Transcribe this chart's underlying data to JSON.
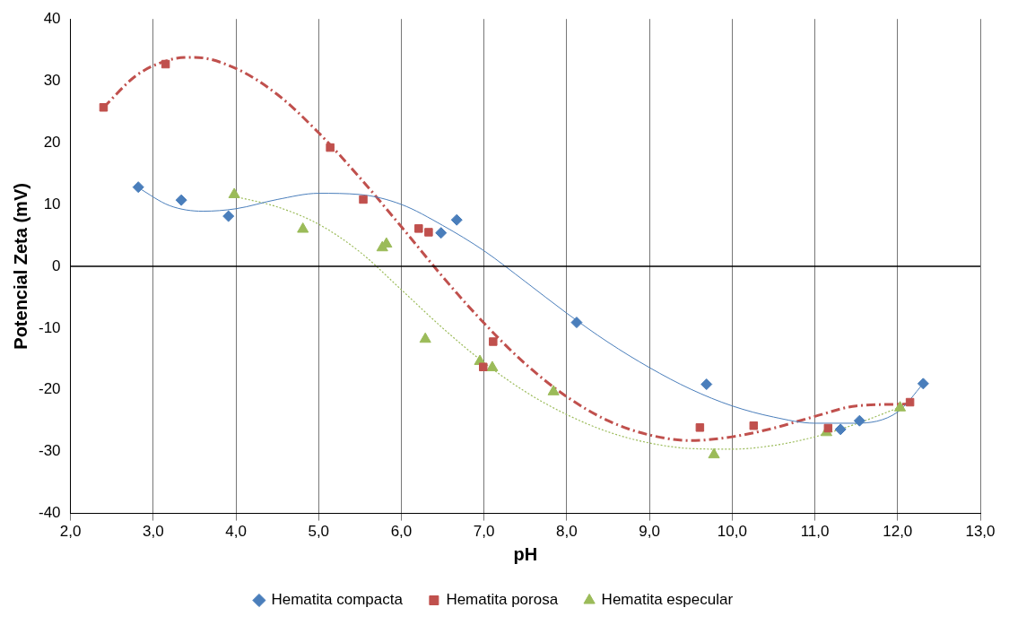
{
  "chart_data": {
    "type": "scatter",
    "xlabel": "pH",
    "ylabel": "Potencial Zeta (mV)",
    "xlim": [
      2,
      13
    ],
    "xticks": [
      {
        "value": 2,
        "label": "2,0"
      },
      {
        "value": 3,
        "label": "3,0"
      },
      {
        "value": 4,
        "label": "4,0"
      },
      {
        "value": 5,
        "label": "5,0"
      },
      {
        "value": 6,
        "label": "6,0"
      },
      {
        "value": 7,
        "label": "7,0"
      },
      {
        "value": 8,
        "label": "8,0"
      },
      {
        "value": 9,
        "label": "9,0"
      },
      {
        "value": 10,
        "label": "10,0"
      },
      {
        "value": 11,
        "label": "11,0"
      },
      {
        "value": 12,
        "label": "12,0"
      },
      {
        "value": 13,
        "label": "13,0"
      }
    ],
    "ylim": [
      -40,
      40
    ],
    "yticks": [
      -40,
      -30,
      -20,
      -10,
      0,
      10,
      20,
      30,
      40
    ],
    "grid": "x",
    "legend": "bottom",
    "ref_lines": [
      {
        "axis": "y",
        "value": 0,
        "color": "#000000"
      }
    ],
    "series": [
      {
        "name": "Hematita compacta",
        "marker": "diamond",
        "color": "#4a7ebb",
        "x": [
          2.82,
          3.34,
          3.91,
          6.48,
          6.67,
          8.12,
          9.69,
          11.31,
          11.54,
          12.31
        ],
        "values": [
          12.8,
          10.7,
          8.1,
          5.4,
          7.5,
          -9.1,
          -19.1,
          -26.4,
          -25.0,
          -19.0
        ]
      },
      {
        "name": "Hematita porosa",
        "marker": "square",
        "color": "#c0504d",
        "x": [
          2.4,
          3.15,
          5.14,
          5.54,
          6.21,
          6.33,
          6.99,
          7.11,
          9.61,
          10.26,
          11.16,
          12.15
        ],
        "values": [
          25.7,
          32.7,
          19.2,
          10.8,
          6.1,
          5.5,
          -16.3,
          -12.2,
          -26.1,
          -25.8,
          -26.2,
          -22.0
        ]
      },
      {
        "name": "Hematita especular",
        "marker": "triangle",
        "color": "#9bbb59",
        "x": [
          3.98,
          4.81,
          5.77,
          5.82,
          6.29,
          6.95,
          7.1,
          7.84,
          9.78,
          11.14,
          12.03
        ],
        "values": [
          11.6,
          6.0,
          3.0,
          3.6,
          -11.8,
          -15.4,
          -16.4,
          -20.3,
          -30.5,
          -26.9,
          -22.9
        ]
      },
      {
        "type": "line",
        "line_style": "solid",
        "color": "#4a7ebb",
        "x": [
          2.82,
          3.2,
          3.6,
          4.0,
          4.5,
          5.0,
          5.5,
          6.0,
          6.5,
          7.0,
          7.5,
          8.0,
          8.5,
          9.0,
          9.5,
          10.0,
          10.5,
          11.0,
          11.5,
          12.0,
          12.31
        ],
        "values": [
          12.7,
          9.8,
          8.9,
          9.3,
          10.8,
          11.8,
          11.6,
          10.0,
          6.6,
          2.5,
          -2.5,
          -7.6,
          -12.3,
          -16.4,
          -19.9,
          -22.6,
          -24.4,
          -25.4,
          -25.4,
          -23.6,
          -19.0
        ]
      },
      {
        "type": "line",
        "line_style": "dashed",
        "color": "#c0504d",
        "x": [
          2.4,
          2.8,
          3.2,
          3.5,
          4.0,
          4.5,
          5.0,
          5.5,
          6.0,
          6.5,
          7.0,
          7.5,
          8.0,
          8.5,
          9.0,
          9.5,
          10.0,
          10.5,
          11.0,
          11.5,
          12.15
        ],
        "values": [
          25.7,
          30.9,
          33.4,
          33.8,
          32.0,
          27.8,
          21.6,
          14.3,
          6.4,
          -1.7,
          -9.2,
          -15.8,
          -21.1,
          -25.0,
          -27.3,
          -28.2,
          -27.6,
          -26.2,
          -24.3,
          -22.6,
          -22.3
        ]
      },
      {
        "type": "line",
        "line_style": "dotted",
        "color": "#9bbb59",
        "x": [
          3.98,
          4.5,
          5.0,
          5.5,
          6.0,
          6.5,
          7.0,
          7.5,
          8.0,
          8.5,
          9.0,
          9.5,
          10.0,
          10.5,
          11.0,
          11.5,
          12.03
        ],
        "values": [
          11.3,
          9.6,
          6.8,
          2.3,
          -3.8,
          -10.0,
          -15.6,
          -20.3,
          -24.0,
          -26.8,
          -28.6,
          -29.5,
          -29.6,
          -29.0,
          -27.6,
          -25.5,
          -22.8
        ]
      }
    ]
  }
}
